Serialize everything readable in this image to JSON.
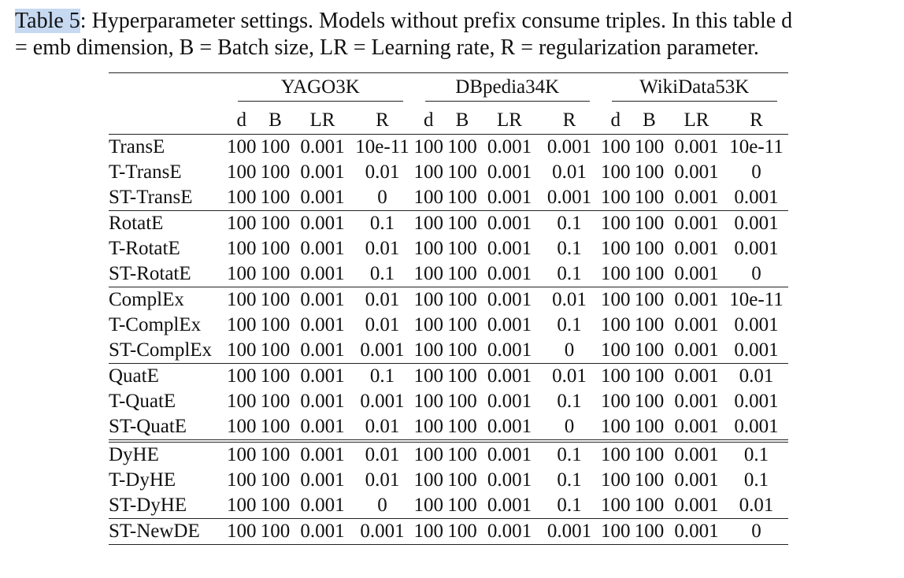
{
  "caption": {
    "label": "Table 5",
    "line1_rest": ": Hyperparameter settings. Models without prefix consume triples. In this table d",
    "line2": "= emb dimension, B = Batch size, LR = Learning rate, R = regularization parameter."
  },
  "table": {
    "datasets": [
      "YAGO3K",
      "DBpedia34K",
      "WikiData53K"
    ],
    "subheaders": [
      "d",
      "B",
      "LR",
      "R"
    ],
    "rows": [
      {
        "model": "TransE",
        "values": [
          "100",
          "100",
          "0.001",
          "10e-11",
          "100",
          "100",
          "0.001",
          "0.001",
          "100",
          "100",
          "0.001",
          "10e-11"
        ]
      },
      {
        "model": "T-TransE",
        "values": [
          "100",
          "100",
          "0.001",
          "0.01",
          "100",
          "100",
          "0.001",
          "0.01",
          "100",
          "100",
          "0.001",
          "0"
        ]
      },
      {
        "model": "ST-TransE",
        "values": [
          "100",
          "100",
          "0.001",
          "0",
          "100",
          "100",
          "0.001",
          "0.001",
          "100",
          "100",
          "0.001",
          "0.001"
        ]
      },
      {
        "model": "RotatE",
        "values": [
          "100",
          "100",
          "0.001",
          "0.1",
          "100",
          "100",
          "0.001",
          "0.1",
          "100",
          "100",
          "0.001",
          "0.001"
        ]
      },
      {
        "model": "T-RotatE",
        "values": [
          "100",
          "100",
          "0.001",
          "0.01",
          "100",
          "100",
          "0.001",
          "0.1",
          "100",
          "100",
          "0.001",
          "0.001"
        ]
      },
      {
        "model": "ST-RotatE",
        "values": [
          "100",
          "100",
          "0.001",
          "0.1",
          "100",
          "100",
          "0.001",
          "0.1",
          "100",
          "100",
          "0.001",
          "0"
        ]
      },
      {
        "model": "ComplEx",
        "values": [
          "100",
          "100",
          "0.001",
          "0.01",
          "100",
          "100",
          "0.001",
          "0.01",
          "100",
          "100",
          "0.001",
          "10e-11"
        ]
      },
      {
        "model": "T-ComplEx",
        "values": [
          "100",
          "100",
          "0.001",
          "0.01",
          "100",
          "100",
          "0.001",
          "0.1",
          "100",
          "100",
          "0.001",
          "0.001"
        ]
      },
      {
        "model": "ST-ComplEx",
        "values": [
          "100",
          "100",
          "0.001",
          "0.001",
          "100",
          "100",
          "0.001",
          "0",
          "100",
          "100",
          "0.001",
          "0.001"
        ]
      },
      {
        "model": "QuatE",
        "values": [
          "100",
          "100",
          "0.001",
          "0.1",
          "100",
          "100",
          "0.001",
          "0.01",
          "100",
          "100",
          "0.001",
          "0.01"
        ]
      },
      {
        "model": "T-QuatE",
        "values": [
          "100",
          "100",
          "0.001",
          "0.001",
          "100",
          "100",
          "0.001",
          "0.1",
          "100",
          "100",
          "0.001",
          "0.001"
        ]
      },
      {
        "model": "ST-QuatE",
        "values": [
          "100",
          "100",
          "0.001",
          "0.01",
          "100",
          "100",
          "0.001",
          "0",
          "100",
          "100",
          "0.001",
          "0.001"
        ]
      },
      {
        "model": "DyHE",
        "values": [
          "100",
          "100",
          "0.001",
          "0.01",
          "100",
          "100",
          "0.001",
          "0.1",
          "100",
          "100",
          "0.001",
          "0.1"
        ]
      },
      {
        "model": "T-DyHE",
        "values": [
          "100",
          "100",
          "0.001",
          "0.01",
          "100",
          "100",
          "0.001",
          "0.1",
          "100",
          "100",
          "0.001",
          "0.1"
        ]
      },
      {
        "model": "ST-DyHE",
        "values": [
          "100",
          "100",
          "0.001",
          "0",
          "100",
          "100",
          "0.001",
          "0.1",
          "100",
          "100",
          "0.001",
          "0.01"
        ]
      },
      {
        "model": "ST-NewDE",
        "values": [
          "100",
          "100",
          "0.001",
          "0.001",
          "100",
          "100",
          "0.001",
          "0.001",
          "100",
          "100",
          "0.001",
          "0"
        ]
      }
    ]
  }
}
